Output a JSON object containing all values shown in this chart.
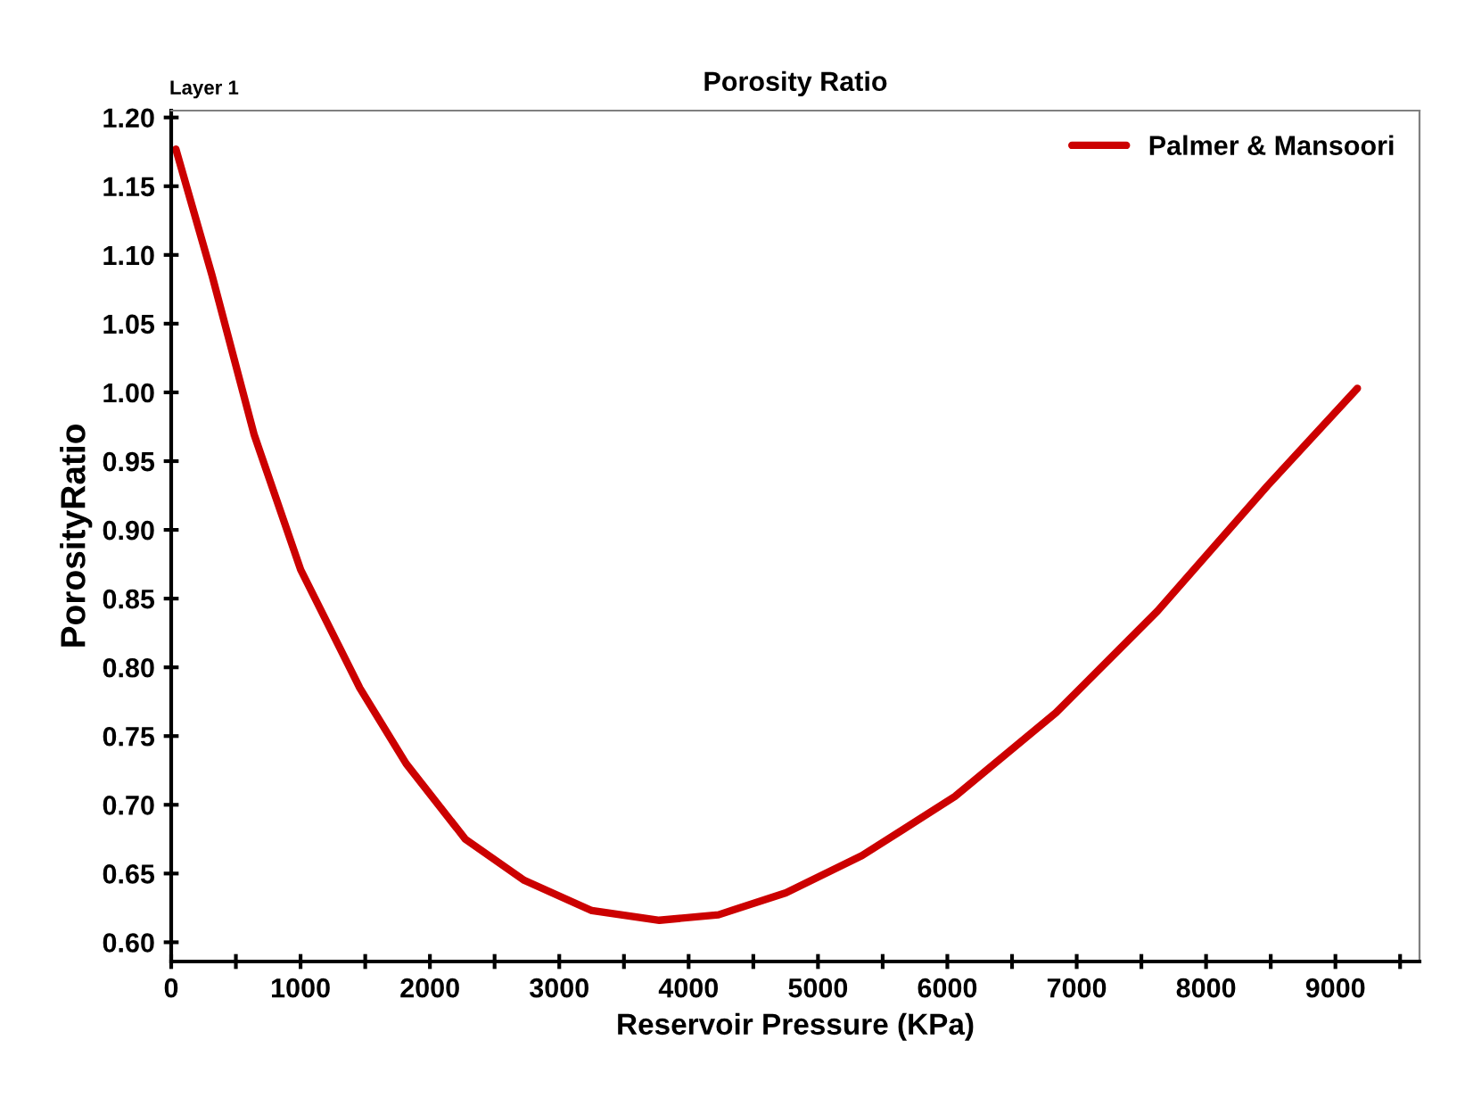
{
  "chart_data": {
    "type": "line",
    "title": "Porosity Ratio",
    "xlabel": "Reservoir Pressure (KPa)",
    "ylabel": "PorosityRatio",
    "annotations": [
      "Layer 1"
    ],
    "series": [
      {
        "name": "Palmer & Mansoori",
        "color": "#cc0000",
        "x": [
          36,
          316,
          642,
          1001,
          1458,
          1816,
          2274,
          2730,
          3252,
          3774,
          4231,
          4752,
          5340,
          6058,
          6840,
          7625,
          8474,
          9170
        ],
        "values": [
          1.177,
          1.085,
          0.969,
          0.871,
          0.785,
          0.73,
          0.675,
          0.645,
          0.623,
          0.616,
          0.62,
          0.636,
          0.663,
          0.706,
          0.767,
          0.841,
          0.932,
          1.003
        ]
      }
    ],
    "xlim": [
      0,
      9650
    ],
    "ylim": [
      0.586,
      1.205
    ],
    "xticks": [
      0,
      {
        "value": 500,
        "label": null
      },
      1000,
      {
        "value": 1500,
        "label": null
      },
      2000,
      {
        "value": 2500,
        "label": null
      },
      3000,
      {
        "value": 3500,
        "label": null
      },
      4000,
      {
        "value": 4500,
        "label": null
      },
      5000,
      {
        "value": 5500,
        "label": null
      },
      6000,
      {
        "value": 6500,
        "label": null
      },
      7000,
      {
        "value": 7500,
        "label": null
      },
      8000,
      {
        "value": 8500,
        "label": null
      },
      9000,
      {
        "value": 9500,
        "label": null
      }
    ],
    "yticks": [
      {
        "value": 0.6,
        "label": "0.60"
      },
      {
        "value": 0.65,
        "label": "0.65"
      },
      {
        "value": 0.7,
        "label": "0.70"
      },
      {
        "value": 0.75,
        "label": "0.75"
      },
      {
        "value": 0.8,
        "label": "0.80"
      },
      {
        "value": 0.85,
        "label": "0.85"
      },
      {
        "value": 0.9,
        "label": "0.90"
      },
      {
        "value": 0.95,
        "label": "0.95"
      },
      {
        "value": 1.0,
        "label": "1.00"
      },
      {
        "value": 1.05,
        "label": "1.05"
      },
      {
        "value": 1.1,
        "label": "1.10"
      },
      {
        "value": 1.15,
        "label": "1.15"
      },
      {
        "value": 1.2,
        "label": "1.20"
      }
    ],
    "grid": false,
    "legend": "top right",
    "marker": "none",
    "line_style": "solid"
  }
}
